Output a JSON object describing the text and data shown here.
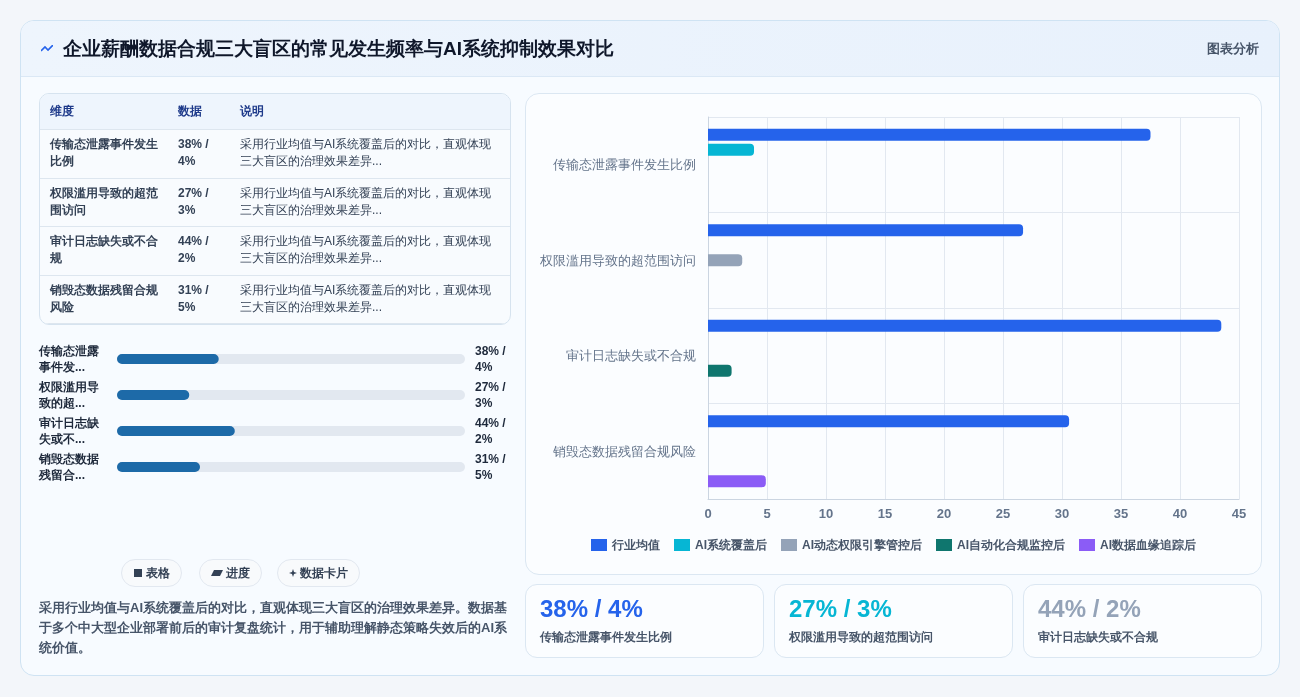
{
  "chart_data": [
    {
      "type": "bar",
      "orientation": "horizontal",
      "title": "企业薪酬数据合规三大盲区的常见发生频率与AI系统抑制效果对比",
      "annotations": [
        "图表分析",
        "采用行业均值与AI系统覆盖后的对比，直观体现三大盲区的治理效果差异。数据基于多个中大型企业部署前后的审计复盘统计，用于辅助理解静态策略失效后的AI系统价值。",
        "表格",
        "进度",
        "数据卡片"
      ],
      "categories": [
        "传输态泄露事件发生比例",
        "权限滥用导致的超范围访问",
        "审计日志缺失或不合规",
        "销毁态数据残留合规风险"
      ],
      "series": [
        {
          "name": "行业均值",
          "color": "#2563eb",
          "values": [
            37.5,
            26.7,
            43.5,
            30.6
          ]
        },
        {
          "name": "AI系统覆盖后",
          "color": "#06b6d4",
          "values": [
            3.9,
            null,
            null,
            null
          ]
        },
        {
          "name": "AI动态权限引擎管控后",
          "color": "#94a3b8",
          "values": [
            null,
            2.9,
            null,
            null
          ]
        },
        {
          "name": "AI自动化合规监控后",
          "color": "#0f766e",
          "values": [
            null,
            null,
            2.0,
            null
          ]
        },
        {
          "name": "AI数据血缘追踪后",
          "color": "#8b5cf6",
          "values": [
            null,
            null,
            null,
            4.9
          ]
        }
      ],
      "xlim": [
        0,
        45
      ],
      "xticks": [
        0,
        5,
        10,
        15,
        20,
        25,
        30,
        35,
        40,
        45
      ],
      "grid": true,
      "legend": "bottom"
    },
    {
      "type": "other",
      "annotations": [
        "维度",
        "数据",
        "说明",
        "传输态泄露事件发生比例",
        "38% / 4%",
        "采用行业均值与AI系统覆盖后的对比，直观体现三大盲区的治理效果差异...",
        "权限滥用导致的超范围访问",
        "27% / 3%",
        "采用行业均值与AI系统覆盖后的对比，直观体现三大盲区的治理效果差异...",
        "审计日志缺失或不合规",
        "44% / 2%",
        "采用行业均值与AI系统覆盖后的对比，直观体现三大盲区的治理效果差异...",
        "销毁态数据残留合规风险",
        "31% / 5%",
        "采用行业均值与AI系统覆盖后的对比，直观体现三大盲区的治理效果差异..."
      ]
    },
    {
      "type": "bar",
      "orientation": "horizontal",
      "categories": [
        "传输态泄露事件发...",
        "权限滥用导致的超...",
        "审计日志缺失或不...",
        "销毁态数据残留合..."
      ],
      "values": [
        38,
        27,
        44,
        31
      ],
      "value_labels": [
        "38% / 4%",
        "27% / 3%",
        "44% / 2%",
        "31% / 5%"
      ],
      "color": "#1d6aa8",
      "xlim": [
        0,
        130
      ],
      "tick_labels": "y"
    },
    {
      "type": "other",
      "title": "38% / 4%",
      "subtitle": "传输态泄露事件发生比例",
      "color": "#2563eb"
    },
    {
      "type": "other",
      "title": "27% / 3%",
      "subtitle": "权限滥用导致的超范围访问",
      "color": "#06b6d4"
    },
    {
      "type": "other",
      "title": "44% / 2%",
      "subtitle": "审计日志缺失或不合规",
      "color": "#94a3b8"
    }
  ]
}
